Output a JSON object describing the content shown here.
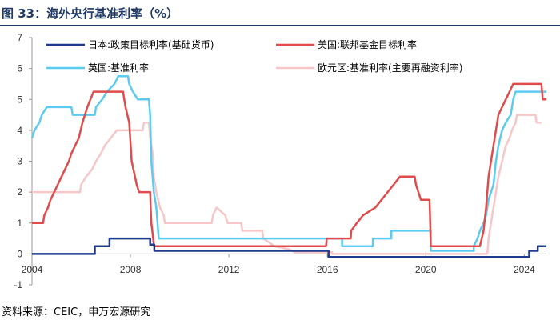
{
  "title": "图 33：海外央行基准利率（%）",
  "source": "资料来源：CEIC，申万宏源研究",
  "chart_data": {
    "type": "line",
    "xlim": [
      2004,
      2024.9
    ],
    "ylim": [
      -1,
      7
    ],
    "xticks": [
      2004,
      2008,
      2012,
      2016,
      2020,
      2024
    ],
    "yticks": [
      -1,
      0,
      1,
      2,
      3,
      4,
      5,
      6,
      7
    ],
    "xtick_labels": [
      "2004",
      "2008",
      "2012",
      "2016",
      "2020",
      "2024"
    ],
    "ytick_labels": [
      "-1",
      "0",
      "1",
      "2",
      "3",
      "4",
      "5",
      "6",
      "7"
    ],
    "grid": false,
    "legend_placement": "top",
    "series": [
      {
        "name": "日本:政策目标利率(基础货币)",
        "color": "#1f3b8f",
        "points": [
          [
            2004.0,
            0.0
          ],
          [
            2006.55,
            0.0
          ],
          [
            2006.55,
            0.25
          ],
          [
            2007.15,
            0.25
          ],
          [
            2007.15,
            0.5
          ],
          [
            2008.8,
            0.5
          ],
          [
            2008.8,
            0.3
          ],
          [
            2008.97,
            0.3
          ],
          [
            2008.97,
            0.1
          ],
          [
            2016.05,
            0.1
          ],
          [
            2016.05,
            -0.1
          ],
          [
            2024.2,
            -0.1
          ],
          [
            2024.2,
            0.1
          ],
          [
            2024.55,
            0.1
          ],
          [
            2024.55,
            0.25
          ],
          [
            2024.9,
            0.25
          ]
        ]
      },
      {
        "name": "美国:联邦基金目标利率",
        "color": "#e04b4b",
        "points": [
          [
            2004.0,
            1.0
          ],
          [
            2004.45,
            1.0
          ],
          [
            2004.5,
            1.25
          ],
          [
            2004.65,
            1.5
          ],
          [
            2004.75,
            1.75
          ],
          [
            2004.9,
            2.0
          ],
          [
            2005.05,
            2.25
          ],
          [
            2005.2,
            2.5
          ],
          [
            2005.35,
            2.75
          ],
          [
            2005.5,
            3.0
          ],
          [
            2005.6,
            3.25
          ],
          [
            2005.75,
            3.5
          ],
          [
            2005.9,
            3.75
          ],
          [
            2006.05,
            4.25
          ],
          [
            2006.25,
            4.75
          ],
          [
            2006.5,
            5.25
          ],
          [
            2007.7,
            5.25
          ],
          [
            2007.8,
            4.75
          ],
          [
            2007.95,
            4.25
          ],
          [
            2008.05,
            3.0
          ],
          [
            2008.25,
            2.25
          ],
          [
            2008.35,
            2.0
          ],
          [
            2008.8,
            2.0
          ],
          [
            2008.82,
            1.5
          ],
          [
            2008.85,
            1.0
          ],
          [
            2008.96,
            0.25
          ],
          [
            2015.95,
            0.25
          ],
          [
            2015.97,
            0.5
          ],
          [
            2016.95,
            0.5
          ],
          [
            2016.97,
            0.75
          ],
          [
            2017.2,
            1.0
          ],
          [
            2017.45,
            1.25
          ],
          [
            2017.95,
            1.5
          ],
          [
            2018.2,
            1.75
          ],
          [
            2018.45,
            2.0
          ],
          [
            2018.7,
            2.25
          ],
          [
            2018.95,
            2.5
          ],
          [
            2019.55,
            2.5
          ],
          [
            2019.6,
            2.25
          ],
          [
            2019.7,
            2.0
          ],
          [
            2019.8,
            1.75
          ],
          [
            2020.15,
            1.75
          ],
          [
            2020.17,
            1.25
          ],
          [
            2020.2,
            0.25
          ],
          [
            2022.2,
            0.25
          ],
          [
            2022.35,
            0.75
          ],
          [
            2022.45,
            1.5
          ],
          [
            2022.55,
            2.5
          ],
          [
            2022.7,
            3.25
          ],
          [
            2022.85,
            4.0
          ],
          [
            2022.95,
            4.5
          ],
          [
            2023.1,
            4.75
          ],
          [
            2023.25,
            5.0
          ],
          [
            2023.4,
            5.25
          ],
          [
            2023.55,
            5.5
          ],
          [
            2024.7,
            5.5
          ],
          [
            2024.75,
            5.0
          ],
          [
            2024.9,
            5.0
          ]
        ]
      },
      {
        "name": "英国:基准利率",
        "color": "#5ccbf0",
        "points": [
          [
            2004.0,
            3.75
          ],
          [
            2004.1,
            4.0
          ],
          [
            2004.3,
            4.25
          ],
          [
            2004.4,
            4.5
          ],
          [
            2004.6,
            4.75
          ],
          [
            2005.6,
            4.75
          ],
          [
            2005.65,
            4.5
          ],
          [
            2006.55,
            4.5
          ],
          [
            2006.6,
            4.75
          ],
          [
            2006.85,
            5.0
          ],
          [
            2007.05,
            5.25
          ],
          [
            2007.35,
            5.5
          ],
          [
            2007.5,
            5.75
          ],
          [
            2007.9,
            5.75
          ],
          [
            2007.95,
            5.5
          ],
          [
            2008.1,
            5.25
          ],
          [
            2008.3,
            5.0
          ],
          [
            2008.75,
            5.0
          ],
          [
            2008.8,
            4.5
          ],
          [
            2008.85,
            3.0
          ],
          [
            2008.95,
            2.0
          ],
          [
            2009.05,
            1.5
          ],
          [
            2009.1,
            1.0
          ],
          [
            2009.15,
            0.5
          ],
          [
            2016.6,
            0.5
          ],
          [
            2016.6,
            0.25
          ],
          [
            2017.85,
            0.25
          ],
          [
            2017.85,
            0.5
          ],
          [
            2018.6,
            0.5
          ],
          [
            2018.6,
            0.75
          ],
          [
            2020.2,
            0.75
          ],
          [
            2020.2,
            0.1
          ],
          [
            2021.95,
            0.1
          ],
          [
            2021.95,
            0.25
          ],
          [
            2022.1,
            0.5
          ],
          [
            2022.2,
            0.75
          ],
          [
            2022.35,
            1.0
          ],
          [
            2022.45,
            1.25
          ],
          [
            2022.55,
            1.75
          ],
          [
            2022.75,
            2.25
          ],
          [
            2022.85,
            3.0
          ],
          [
            2022.95,
            3.5
          ],
          [
            2023.1,
            4.0
          ],
          [
            2023.25,
            4.25
          ],
          [
            2023.45,
            4.5
          ],
          [
            2023.55,
            5.0
          ],
          [
            2023.65,
            5.25
          ],
          [
            2024.9,
            5.25
          ]
        ]
      },
      {
        "name": "欧元区:基准利率(主要再融资利率)",
        "color": "#f7c6c8",
        "points": [
          [
            2004.0,
            2.0
          ],
          [
            2005.95,
            2.0
          ],
          [
            2006.0,
            2.25
          ],
          [
            2006.2,
            2.5
          ],
          [
            2006.45,
            2.75
          ],
          [
            2006.6,
            3.0
          ],
          [
            2006.8,
            3.25
          ],
          [
            2006.95,
            3.5
          ],
          [
            2007.2,
            3.75
          ],
          [
            2007.45,
            4.0
          ],
          [
            2008.5,
            4.0
          ],
          [
            2008.55,
            4.25
          ],
          [
            2008.75,
            4.25
          ],
          [
            2008.8,
            3.75
          ],
          [
            2008.9,
            3.25
          ],
          [
            2008.95,
            2.5
          ],
          [
            2009.05,
            2.0
          ],
          [
            2009.2,
            1.5
          ],
          [
            2009.35,
            1.25
          ],
          [
            2009.4,
            1.0
          ],
          [
            2011.3,
            1.0
          ],
          [
            2011.35,
            1.25
          ],
          [
            2011.5,
            1.5
          ],
          [
            2011.85,
            1.25
          ],
          [
            2011.95,
            1.0
          ],
          [
            2012.5,
            1.0
          ],
          [
            2012.55,
            0.75
          ],
          [
            2013.35,
            0.75
          ],
          [
            2013.4,
            0.5
          ],
          [
            2013.85,
            0.25
          ],
          [
            2014.45,
            0.15
          ],
          [
            2014.7,
            0.05
          ],
          [
            2016.2,
            0.05
          ],
          [
            2016.2,
            0.0
          ],
          [
            2022.5,
            0.0
          ],
          [
            2022.55,
            0.5
          ],
          [
            2022.7,
            1.25
          ],
          [
            2022.85,
            2.0
          ],
          [
            2022.95,
            2.5
          ],
          [
            2023.1,
            3.0
          ],
          [
            2023.25,
            3.5
          ],
          [
            2023.4,
            3.75
          ],
          [
            2023.5,
            4.0
          ],
          [
            2023.65,
            4.25
          ],
          [
            2023.7,
            4.5
          ],
          [
            2024.45,
            4.5
          ],
          [
            2024.5,
            4.25
          ],
          [
            2024.7,
            4.25
          ]
        ]
      }
    ]
  }
}
